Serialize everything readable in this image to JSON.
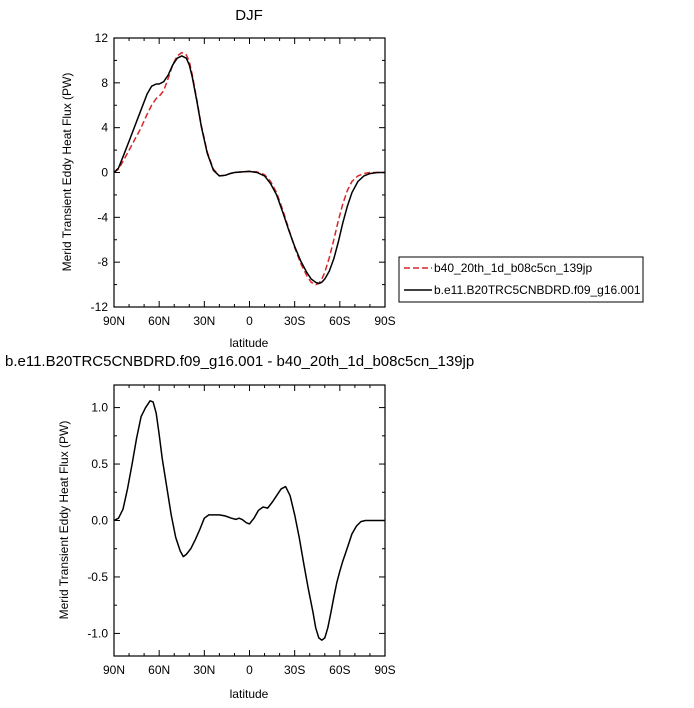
{
  "chart_data": [
    {
      "type": "line",
      "title": "DJF",
      "xlabel": "latitude",
      "ylabel": "Merid Transient Eddy Heat Flux (PW)",
      "xlim": [
        90,
        -90
      ],
      "ylim": [
        -12,
        12
      ],
      "xticks": [
        90,
        60,
        30,
        0,
        -30,
        -60,
        -90
      ],
      "xtick_labels": [
        "90N",
        "60N",
        "30N",
        "0",
        "30S",
        "60S",
        "90S"
      ],
      "yticks": [
        -12,
        -8,
        -4,
        0,
        4,
        8,
        12
      ],
      "ytick_labels": [
        "-12",
        "-8",
        "-4",
        "0",
        "4",
        "8",
        "12"
      ],
      "legend_position": "right",
      "series": [
        {
          "name": "b40_20th_1d_b08c5cn_139jp",
          "color": "#d62728",
          "dash": true,
          "x": [
            90,
            87,
            84,
            80,
            76,
            72,
            68,
            65,
            62,
            60,
            57,
            54,
            51,
            48,
            45,
            42,
            40,
            38,
            35,
            32,
            28,
            24,
            20,
            16,
            13,
            10,
            5,
            0,
            -5,
            -10,
            -14,
            -18,
            -22,
            -26,
            -30,
            -34,
            -38,
            -41,
            -44,
            -46,
            -48,
            -50,
            -53,
            -56,
            -59,
            -62,
            -65,
            -68,
            -72,
            -76,
            -80,
            -85,
            -90
          ],
          "y": [
            0,
            0.3,
            1.0,
            2.0,
            3.0,
            4.0,
            5.2,
            6.0,
            6.6,
            6.8,
            7.3,
            8.4,
            9.6,
            10.4,
            10.7,
            10.5,
            9.9,
            8.7,
            6.5,
            4.2,
            1.8,
            0.3,
            -0.3,
            -0.25,
            -0.1,
            0,
            0.05,
            0.1,
            0.05,
            -0.2,
            -0.8,
            -1.8,
            -3.3,
            -5.0,
            -6.7,
            -8.1,
            -9.2,
            -9.8,
            -10.0,
            -9.9,
            -9.5,
            -8.9,
            -7.6,
            -6.0,
            -4.3,
            -2.8,
            -1.6,
            -0.8,
            -0.3,
            -0.1,
            0,
            0,
            0
          ]
        },
        {
          "name": "b.e11.B20TRC5CNBDRD.f09_g16.001",
          "color": "#000000",
          "dash": false,
          "x": [
            90,
            87,
            84,
            80,
            76,
            72,
            68,
            65,
            62,
            60,
            57,
            54,
            51,
            48,
            45,
            42,
            40,
            38,
            35,
            32,
            28,
            24,
            20,
            16,
            13,
            10,
            5,
            0,
            -5,
            -10,
            -14,
            -18,
            -22,
            -26,
            -30,
            -34,
            -38,
            -41,
            -44,
            -46,
            -48,
            -50,
            -53,
            -56,
            -59,
            -62,
            -65,
            -68,
            -72,
            -76,
            -80,
            -85,
            -90
          ],
          "y": [
            0,
            0.4,
            1.4,
            2.8,
            4.2,
            5.6,
            7.0,
            7.7,
            7.9,
            7.9,
            8.1,
            8.7,
            9.6,
            10.2,
            10.4,
            10.2,
            9.6,
            8.5,
            6.4,
            4.1,
            1.7,
            0.2,
            -0.3,
            -0.25,
            -0.1,
            0,
            0.05,
            0.1,
            0.0,
            -0.3,
            -1.0,
            -2.0,
            -3.5,
            -5.1,
            -6.6,
            -7.9,
            -8.9,
            -9.5,
            -9.8,
            -9.9,
            -9.8,
            -9.5,
            -8.8,
            -7.7,
            -6.2,
            -4.5,
            -3.0,
            -1.8,
            -0.8,
            -0.3,
            -0.1,
            0,
            0
          ]
        }
      ]
    },
    {
      "type": "line",
      "title": "b.e11.B20TRC5CNBDRD.f09_g16.001 - b40_20th_1d_b08c5cn_139jp",
      "xlabel": "latitude",
      "ylabel": "Merid Transient Eddy Heat Flux (PW)",
      "xlim": [
        90,
        -90
      ],
      "ylim": [
        -1.2,
        1.2
      ],
      "xticks": [
        90,
        60,
        30,
        0,
        -30,
        -60,
        -90
      ],
      "xtick_labels": [
        "90N",
        "60N",
        "30N",
        "0",
        "30S",
        "60S",
        "90S"
      ],
      "yticks": [
        -1.0,
        -0.5,
        0.0,
        0.5,
        1.0
      ],
      "ytick_labels": [
        "-1.0",
        "-0.5",
        "0.0",
        "0.5",
        "1.0"
      ],
      "series": [
        {
          "name": "",
          "color": "#000000",
          "dash": false,
          "x": [
            90,
            87,
            84,
            81,
            78,
            75,
            72,
            69,
            66,
            64,
            62,
            60,
            58,
            55,
            52,
            49,
            46,
            44,
            42,
            39,
            36,
            33,
            30,
            27,
            24,
            20,
            16,
            12,
            9,
            7,
            5,
            2,
            0,
            -3,
            -6,
            -9,
            -12,
            -15,
            -18,
            -21,
            -24,
            -27,
            -30,
            -33,
            -36,
            -39,
            -42,
            -44,
            -46,
            -48,
            -50,
            -52,
            -54,
            -56,
            -58,
            -60,
            -62,
            -64,
            -66,
            -68,
            -71,
            -74,
            -77,
            -80,
            -83,
            -86,
            -90
          ],
          "y": [
            0,
            0.02,
            0.1,
            0.28,
            0.5,
            0.73,
            0.92,
            1.0,
            1.06,
            1.05,
            0.95,
            0.76,
            0.55,
            0.3,
            0.05,
            -0.15,
            -0.27,
            -0.32,
            -0.3,
            -0.25,
            -0.17,
            -0.08,
            0.02,
            0.05,
            0.05,
            0.05,
            0.04,
            0.02,
            0.01,
            0.02,
            0.01,
            -0.02,
            -0.03,
            0.02,
            0.09,
            0.12,
            0.11,
            0.16,
            0.22,
            0.28,
            0.3,
            0.22,
            0.05,
            -0.15,
            -0.38,
            -0.6,
            -0.8,
            -0.95,
            -1.04,
            -1.06,
            -1.04,
            -0.95,
            -0.82,
            -0.68,
            -0.55,
            -0.45,
            -0.36,
            -0.28,
            -0.2,
            -0.12,
            -0.05,
            -0.01,
            0,
            0,
            0,
            0,
            0
          ]
        }
      ]
    }
  ]
}
